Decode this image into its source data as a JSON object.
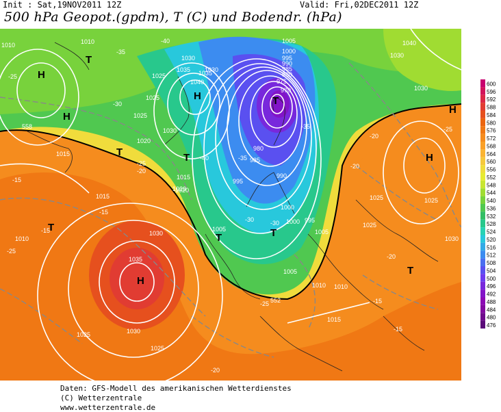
{
  "header": {
    "init": "Init : Sat,19NOV2011 12Z",
    "valid": "Valid: Fri,02DEC2011 12Z",
    "title": "500 hPa Geopot.(gpdm), T (C) und Bodendr. (hPa)"
  },
  "legend": {
    "values": [
      "600",
      "596",
      "592",
      "588",
      "584",
      "580",
      "576",
      "572",
      "568",
      "564",
      "560",
      "556",
      "552",
      "548",
      "544",
      "540",
      "536",
      "532",
      "528",
      "524",
      "520",
      "516",
      "512",
      "508",
      "504",
      "500",
      "496",
      "492",
      "488",
      "484",
      "480",
      "476"
    ],
    "colors": [
      "#c8006e",
      "#d2145a",
      "#dc2846",
      "#e13c32",
      "#e6501e",
      "#eb640f",
      "#f07814",
      "#f58c1e",
      "#faa028",
      "#fab432",
      "#f5c83c",
      "#f0dc3c",
      "#e6eb32",
      "#c8e632",
      "#a0dc32",
      "#78d23c",
      "#50c850",
      "#32be64",
      "#28c88c",
      "#28d2b4",
      "#28c8dc",
      "#32aae6",
      "#3c8cf0",
      "#4b6ef0",
      "#5a50f0",
      "#6e3cf0",
      "#7828dc",
      "#8214c8",
      "#8c0ab4",
      "#820aa0",
      "#6e0a8c",
      "#5a0a78"
    ]
  },
  "isobar_labels": [
    "1010",
    "1010",
    "1025",
    "1035",
    "1030",
    "1040",
    "1005",
    "1000",
    "995",
    "990",
    "985",
    "980",
    "975",
    "970",
    "1035",
    "1030",
    "1025",
    "1040",
    "1030",
    "1030",
    "1020",
    "1025",
    "1020",
    "1015",
    "1015",
    "1015",
    "1010",
    "1005",
    "1005",
    "1000",
    "995",
    "990",
    "985",
    "980",
    "995",
    "1000",
    "1005",
    "1010",
    "1010",
    "1015",
    "1025",
    "1025",
    "1025",
    "1030",
    "1035",
    "1030",
    "1025",
    "1025",
    "1030",
    "1020",
    "1030"
  ],
  "temp_labels": [
    "-35",
    "-25",
    "-30",
    "-25",
    "-20",
    "-40",
    "-40",
    "-35",
    "-30",
    "-25",
    "-30",
    "-35",
    "-20",
    "-25",
    "-15",
    "-15",
    "-15",
    "-20",
    "-20",
    "-15",
    "-15",
    "-25",
    "-20"
  ],
  "height_labels": [
    "558",
    "552"
  ],
  "pressure_centers": [
    {
      "label": "H"
    },
    {
      "label": "H"
    },
    {
      "label": "T"
    },
    {
      "label": "H"
    },
    {
      "label": "T"
    },
    {
      "label": "T"
    },
    {
      "label": "T"
    },
    {
      "label": "T"
    },
    {
      "label": "T"
    },
    {
      "label": "T"
    },
    {
      "label": "H"
    },
    {
      "label": "H"
    },
    {
      "label": "H"
    },
    {
      "label": "T"
    }
  ],
  "footer": {
    "line1": "Daten: GFS-Modell des amerikanischen Wetterdienstes",
    "line2": "(C) Wetterzentrale",
    "line3": "www.wetterzentrale.de"
  }
}
